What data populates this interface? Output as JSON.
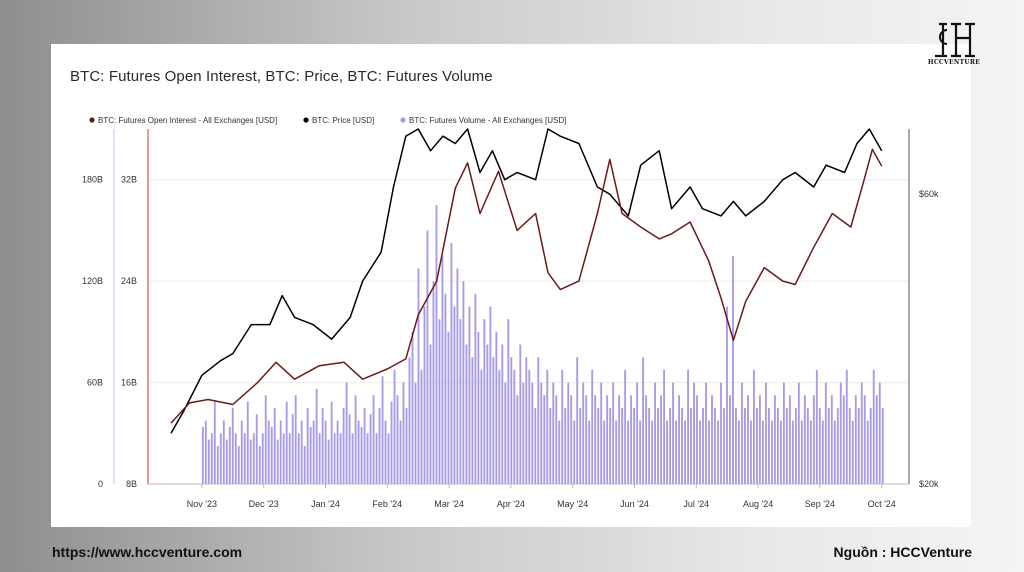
{
  "page": {
    "source_url": "https://www.hccventure.com",
    "source_credit": "Nguồn : HCCVenture",
    "logo_text": "HCCVENTURE"
  },
  "colors": {
    "open_interest": "#6b1a1a",
    "price": "#000000",
    "volume": "#a79be6",
    "accent_red": "#d32f2f"
  },
  "chart_data": {
    "type": "line",
    "title": "BTC: Futures Open Interest, BTC: Price, BTC: Futures Volume",
    "legend": {
      "placement": "top-left",
      "entries": [
        "BTC: Futures Open Interest - All Exchanges [USD]",
        "BTC: Price [USD]",
        "BTC: Futures Volume - All Exchanges [USD]"
      ]
    },
    "x_ticks": [
      "Nov '23",
      "Dec '23",
      "Jan '24",
      "Feb '24",
      "Mar '24",
      "Apr '24",
      "May '24",
      "Jun '24",
      "Jul '24",
      "Aug '24",
      "Sep '24",
      "Oct '24"
    ],
    "axes": {
      "open_interest": {
        "ticks": [
          "0",
          "60B",
          "120B",
          "180B"
        ],
        "range": [
          0,
          210
        ]
      },
      "volume": {
        "ticks": [
          "8B",
          "16B",
          "24B",
          "32B"
        ],
        "range": [
          8,
          36
        ]
      },
      "price": {
        "ticks": [
          "$20k",
          "$60k"
        ],
        "range": [
          20,
          69
        ]
      }
    },
    "grid": true,
    "series": [
      {
        "name": "BTC: Futures Open Interest - All Exchanges [USD]",
        "kind": "line",
        "axis": "open_interest",
        "month_index": [
          0,
          0.3,
          0.6,
          1.0,
          1.4,
          1.7,
          2.0,
          2.4,
          2.8,
          3.1,
          3.5,
          3.8,
          4.0,
          4.3,
          4.6,
          4.8,
          5.0,
          5.3,
          5.6,
          5.9,
          6.1,
          6.3,
          6.6,
          6.9,
          7.1,
          7.3,
          7.6,
          7.9,
          8.1,
          8.4,
          8.7,
          8.9,
          9.1,
          9.3,
          9.6,
          9.9,
          10.1,
          10.4,
          10.7,
          11.0,
          11.2,
          11.35,
          11.5
        ],
        "values": [
          36,
          48,
          50,
          47,
          60,
          72,
          62,
          70,
          72,
          62,
          68,
          74,
          100,
          120,
          175,
          190,
          160,
          185,
          150,
          160,
          125,
          115,
          120,
          160,
          192,
          160,
          152,
          145,
          148,
          155,
          132,
          110,
          85,
          108,
          128,
          120,
          118,
          140,
          160,
          152,
          178,
          198,
          188
        ]
      },
      {
        "name": "BTC: Price [USD]",
        "kind": "line",
        "axis": "price",
        "month_index": [
          0,
          0.2,
          0.5,
          0.8,
          1.0,
          1.3,
          1.6,
          1.8,
          2.0,
          2.3,
          2.6,
          2.9,
          3.1,
          3.4,
          3.6,
          3.8,
          4.0,
          4.2,
          4.4,
          4.6,
          4.8,
          5.0,
          5.2,
          5.4,
          5.6,
          5.9,
          6.1,
          6.3,
          6.6,
          6.9,
          7.1,
          7.4,
          7.6,
          7.9,
          8.1,
          8.4,
          8.6,
          8.9,
          9.1,
          9.3,
          9.6,
          9.9,
          10.1,
          10.4,
          10.6,
          10.9,
          11.1,
          11.3,
          11.5
        ],
        "values": [
          27,
          30,
          35,
          37,
          38,
          42,
          42,
          46,
          43,
          42,
          40,
          43,
          48,
          52,
          61,
          68,
          69,
          66,
          68,
          67,
          69,
          63,
          66,
          62,
          63,
          62,
          69,
          68,
          67,
          61,
          60,
          57,
          64,
          66,
          58,
          61,
          58,
          57,
          59,
          57,
          59,
          62,
          63,
          61,
          64,
          63,
          67,
          69,
          66
        ]
      },
      {
        "name": "BTC: Futures Volume - All Exchanges [USD]",
        "kind": "bar",
        "axis": "volume",
        "start_month_index": 0.5,
        "end_month_index": 11.55,
        "values": [
          12.5,
          13,
          11.5,
          12,
          14.5,
          11,
          12,
          13,
          11.5,
          12.5,
          14,
          12,
          11,
          13,
          12,
          14.5,
          11.5,
          12,
          13.5,
          11,
          12,
          15,
          13,
          12.5,
          14,
          11.5,
          13,
          12,
          14.5,
          12,
          13.5,
          15,
          12,
          13,
          11,
          14,
          12.5,
          13,
          15.5,
          12,
          14,
          13,
          11.5,
          14.5,
          12,
          13,
          12,
          14,
          16,
          13.5,
          12,
          15,
          13,
          12.5,
          14,
          12,
          13.5,
          15,
          12,
          14,
          16.5,
          13,
          12,
          14.5,
          17,
          15,
          13,
          16,
          14,
          18,
          20,
          16,
          25,
          17,
          22,
          28,
          19,
          24,
          30,
          21,
          26,
          23,
          20,
          27,
          22,
          25,
          21,
          24,
          19,
          22,
          18,
          23,
          20,
          17,
          21,
          19,
          22,
          18,
          20,
          17,
          19,
          16,
          21,
          18,
          17,
          15,
          19,
          16,
          18,
          17,
          16,
          14,
          18,
          16,
          15,
          17,
          14,
          16,
          15,
          13,
          17,
          14,
          16,
          15,
          13,
          18,
          14,
          16,
          15,
          13,
          17,
          15,
          14,
          16,
          13,
          15,
          14,
          16,
          13,
          15,
          14,
          17,
          13,
          15,
          14,
          16,
          13,
          18,
          15,
          14,
          13,
          16,
          14,
          15,
          17,
          13,
          14,
          16,
          13,
          15,
          14,
          13,
          17,
          14,
          16,
          15,
          13,
          14,
          16,
          13,
          15,
          14,
          13,
          16,
          14,
          22,
          15,
          26,
          14,
          13,
          16,
          14,
          15,
          13,
          17,
          14,
          15,
          13,
          16,
          14,
          13,
          15,
          14,
          13,
          16,
          14,
          15,
          13,
          14,
          16,
          13,
          15,
          14,
          13,
          15,
          17,
          14,
          13,
          16,
          14,
          15,
          13,
          14,
          16,
          15,
          17,
          14,
          13,
          15,
          14,
          16,
          15,
          13,
          14,
          17,
          15,
          16,
          14
        ]
      }
    ]
  }
}
